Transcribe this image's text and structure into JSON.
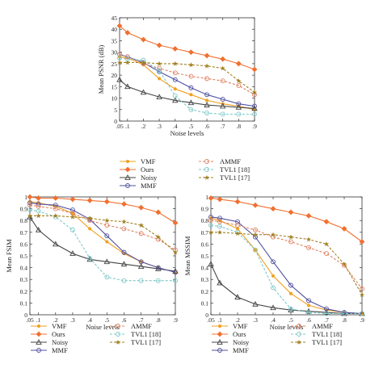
{
  "chart_data": [
    {
      "type": "line",
      "xlabel": "Noise levels",
      "ylabel": "Mean PSNR (dB)",
      "x": [
        0.05,
        0.1,
        0.2,
        0.3,
        0.4,
        0.5,
        0.6,
        0.7,
        0.8,
        0.9
      ],
      "xtick_labels": [
        ".05",
        ".1",
        ".2",
        ".3",
        ".4",
        ".5",
        ".6",
        ".7",
        ".8",
        ".9"
      ],
      "xlim": [
        0.05,
        0.9
      ],
      "ylim": [
        0,
        45
      ],
      "yticks": [
        0,
        5,
        10,
        15,
        20,
        25,
        30,
        35,
        40,
        45
      ],
      "ytick_labels": [
        "0",
        "5",
        "10",
        "15",
        "20",
        "25",
        "30",
        "35",
        "40",
        "45"
      ],
      "grid": false,
      "series": [
        {
          "name": "VMF",
          "color": "#f0a020",
          "marker": "dot",
          "dashed": false,
          "values": [
            28.0,
            27.5,
            24.5,
            18.5,
            14.0,
            11.5,
            9.0,
            7.5,
            6.5,
            5.0
          ]
        },
        {
          "name": "Ours",
          "color": "#f07030",
          "marker": "diamond",
          "dashed": false,
          "values": [
            41.5,
            38.5,
            35.5,
            33.0,
            31.5,
            30.0,
            28.5,
            27.0,
            25.0,
            22.5
          ]
        },
        {
          "name": "Noisy",
          "color": "#444444",
          "marker": "triangle",
          "dashed": false,
          "values": [
            18.0,
            15.0,
            12.5,
            10.5,
            9.0,
            8.0,
            7.0,
            6.5,
            6.0,
            5.5
          ]
        },
        {
          "name": "MMF",
          "color": "#5050a0",
          "marker": "circle",
          "dashed": false,
          "values": [
            29.0,
            28.0,
            25.5,
            21.5,
            18.0,
            14.5,
            11.5,
            9.5,
            7.5,
            6.5
          ]
        },
        {
          "name": "AMMF",
          "color": "#e08060",
          "marker": "circle",
          "dashed": true,
          "values": [
            29.0,
            28.0,
            25.0,
            23.0,
            21.0,
            19.5,
            18.5,
            17.5,
            15.5,
            11.5
          ]
        },
        {
          "name": "TVL1 [18]",
          "color": "#7ec8c8",
          "marker": "circle",
          "dashed": true,
          "values": [
            27.5,
            27.0,
            26.5,
            22.0,
            11.0,
            5.0,
            3.5,
            3.0,
            3.0,
            3.0
          ]
        },
        {
          "name": "TVL1 [17]",
          "color": "#a08020",
          "marker": "star",
          "dashed": true,
          "values": [
            25.5,
            25.5,
            25.5,
            25.0,
            25.0,
            24.5,
            24.0,
            23.0,
            17.5,
            12.5
          ]
        }
      ]
    },
    {
      "type": "line",
      "xlabel": "Noise levels",
      "ylabel": "Mean FSIM",
      "x": [
        0.05,
        0.1,
        0.2,
        0.3,
        0.4,
        0.5,
        0.6,
        0.7,
        0.8,
        0.9
      ],
      "xtick_labels": [
        ".05",
        ".1",
        ".2",
        ".3",
        ".4",
        ".5",
        ".6",
        ".7",
        ".8",
        ".9"
      ],
      "xlim": [
        0.05,
        0.9
      ],
      "ylim": [
        0,
        1
      ],
      "yticks": [
        0,
        0.1,
        0.2,
        0.3,
        0.4,
        0.5,
        0.6,
        0.7,
        0.8,
        0.9,
        1.0
      ],
      "ytick_labels": [
        "0",
        "0.1",
        "0.2",
        "0.3",
        "0.4",
        "0.5",
        "0.6",
        "0.7",
        "0.8",
        "0.9",
        "1"
      ],
      "grid": false,
      "series": [
        {
          "name": "VMF",
          "color": "#f0a020",
          "marker": "dot",
          "dashed": false,
          "values": [
            0.96,
            0.95,
            0.92,
            0.86,
            0.73,
            0.62,
            0.52,
            0.45,
            0.4,
            0.36
          ]
        },
        {
          "name": "Ours",
          "color": "#f07030",
          "marker": "diamond",
          "dashed": false,
          "values": [
            1.0,
            0.99,
            0.99,
            0.98,
            0.97,
            0.96,
            0.94,
            0.91,
            0.87,
            0.78
          ]
        },
        {
          "name": "Noisy",
          "color": "#444444",
          "marker": "triangle",
          "dashed": false,
          "values": [
            0.83,
            0.72,
            0.6,
            0.52,
            0.47,
            0.45,
            0.43,
            0.41,
            0.39,
            0.37
          ]
        },
        {
          "name": "MMF",
          "color": "#5050a0",
          "marker": "circle",
          "dashed": false,
          "values": [
            0.95,
            0.94,
            0.93,
            0.89,
            0.81,
            0.67,
            0.53,
            0.45,
            0.4,
            0.36
          ]
        },
        {
          "name": "AMMF",
          "color": "#e08060",
          "marker": "circle",
          "dashed": true,
          "values": [
            0.93,
            0.92,
            0.9,
            0.86,
            0.8,
            0.76,
            0.73,
            0.69,
            0.64,
            0.55
          ]
        },
        {
          "name": "TVL1 [18]",
          "color": "#7ec8c8",
          "marker": "circle",
          "dashed": true,
          "values": [
            0.89,
            0.88,
            0.83,
            0.72,
            0.48,
            0.32,
            0.29,
            0.29,
            0.29,
            0.29
          ]
        },
        {
          "name": "TVL1 [17]",
          "color": "#a08020",
          "marker": "star",
          "dashed": true,
          "values": [
            0.84,
            0.84,
            0.84,
            0.83,
            0.82,
            0.8,
            0.79,
            0.76,
            0.66,
            0.53
          ]
        }
      ]
    },
    {
      "type": "line",
      "xlabel": "Noise levels",
      "ylabel": "Mean MSSIM",
      "x": [
        0.05,
        0.1,
        0.2,
        0.3,
        0.4,
        0.5,
        0.6,
        0.7,
        0.8,
        0.9
      ],
      "xtick_labels": [
        ".05",
        ".1",
        ".2",
        ".3",
        ".4",
        ".5",
        ".6",
        ".7",
        ".8",
        ".9"
      ],
      "xlim": [
        0.05,
        0.9
      ],
      "ylim": [
        0,
        1
      ],
      "yticks": [
        0,
        0.1,
        0.2,
        0.3,
        0.4,
        0.5,
        0.6,
        0.7,
        0.8,
        0.9,
        1.0
      ],
      "ytick_labels": [
        "0",
        "0.1",
        "0.2",
        "0.3",
        "0.4",
        "0.5",
        "0.6",
        "0.7",
        "0.8",
        "0.9",
        "1"
      ],
      "grid": false,
      "series": [
        {
          "name": "VMF",
          "color": "#f0a020",
          "marker": "dot",
          "dashed": false,
          "values": [
            0.82,
            0.8,
            0.73,
            0.55,
            0.33,
            0.18,
            0.08,
            0.04,
            0.02,
            0.01
          ]
        },
        {
          "name": "Ours",
          "color": "#f07030",
          "marker": "diamond",
          "dashed": false,
          "values": [
            0.99,
            0.98,
            0.96,
            0.93,
            0.9,
            0.87,
            0.84,
            0.79,
            0.73,
            0.62
          ]
        },
        {
          "name": "Noisy",
          "color": "#444444",
          "marker": "triangle",
          "dashed": false,
          "values": [
            0.43,
            0.27,
            0.15,
            0.09,
            0.06,
            0.04,
            0.03,
            0.02,
            0.01,
            0.01
          ]
        },
        {
          "name": "MMF",
          "color": "#5050a0",
          "marker": "circle",
          "dashed": false,
          "values": [
            0.83,
            0.82,
            0.79,
            0.66,
            0.45,
            0.25,
            0.12,
            0.05,
            0.02,
            0.01
          ]
        },
        {
          "name": "AMMF",
          "color": "#e08060",
          "marker": "circle",
          "dashed": true,
          "values": [
            0.8,
            0.79,
            0.76,
            0.72,
            0.66,
            0.62,
            0.57,
            0.52,
            0.42,
            0.22
          ]
        },
        {
          "name": "TVL1 [18]",
          "color": "#7ec8c8",
          "marker": "circle",
          "dashed": true,
          "values": [
            0.76,
            0.75,
            0.7,
            0.55,
            0.23,
            0.05,
            0.02,
            0.01,
            0.01,
            0.01
          ]
        },
        {
          "name": "TVL1 [17]",
          "color": "#a08020",
          "marker": "star",
          "dashed": true,
          "values": [
            0.7,
            0.7,
            0.69,
            0.68,
            0.68,
            0.66,
            0.64,
            0.6,
            0.43,
            0.17
          ]
        }
      ]
    }
  ]
}
